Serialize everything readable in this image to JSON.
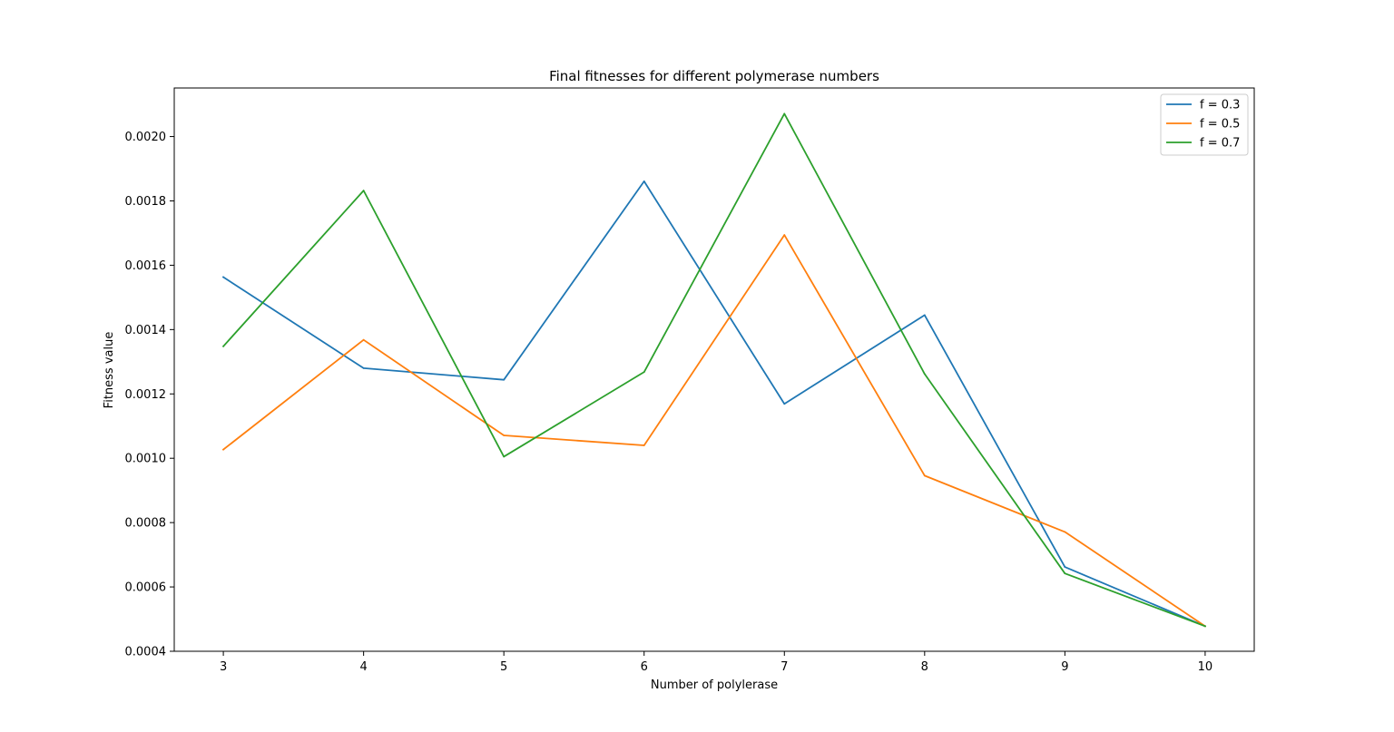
{
  "chart_data": {
    "type": "line",
    "title": "Final fitnesses for different polymerase numbers",
    "xlabel": "Number of polylerase",
    "ylabel": "Fitness value",
    "x": [
      3,
      4,
      5,
      6,
      7,
      8,
      9,
      10
    ],
    "xlim": [
      2.65,
      10.35
    ],
    "ylim": [
      0.0004,
      0.002151
    ],
    "xticks": [
      3,
      4,
      5,
      6,
      7,
      8,
      9,
      10
    ],
    "xtick_labels": [
      "3",
      "4",
      "5",
      "6",
      "7",
      "8",
      "9",
      "10"
    ],
    "yticks": [
      0.0004,
      0.0006,
      0.0008,
      0.001,
      0.0012,
      0.0014,
      0.0016,
      0.0018,
      0.002
    ],
    "ytick_labels": [
      "0.0004",
      "0.0006",
      "0.0008",
      "0.0010",
      "0.0012",
      "0.0014",
      "0.0016",
      "0.0018",
      "0.0020"
    ],
    "grid": false,
    "legend_position": "top-right",
    "series": [
      {
        "name": "f = 0.3",
        "color": "#1f77b4",
        "values": [
          0.001563,
          0.00128,
          0.001244,
          0.001861,
          0.001169,
          0.001445,
          0.000662,
          0.000478
        ]
      },
      {
        "name": "f = 0.5",
        "color": "#ff7f0e",
        "values": [
          0.001027,
          0.001368,
          0.001071,
          0.00104,
          0.001694,
          0.000946,
          0.000771,
          0.000478
        ]
      },
      {
        "name": "f = 0.7",
        "color": "#2ca02c",
        "values": [
          0.001348,
          0.001832,
          0.001005,
          0.001268,
          0.002071,
          0.001262,
          0.000642,
          0.000478
        ]
      }
    ]
  }
}
